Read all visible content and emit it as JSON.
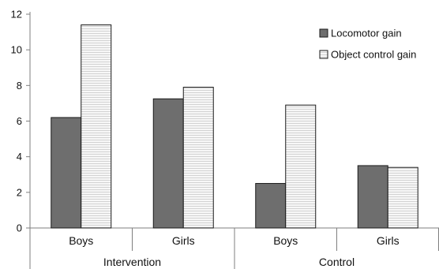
{
  "chart_data": {
    "type": "bar",
    "title": "",
    "xlabel": "",
    "ylabel": "",
    "ylim": [
      0,
      12
    ],
    "yticks": [
      "0",
      "2",
      "4",
      "6",
      "8",
      "10",
      "12"
    ],
    "groups": [
      {
        "label": "Intervention",
        "categories": [
          "Boys",
          "Girls"
        ]
      },
      {
        "label": "Control",
        "categories": [
          "Boys",
          "Girls"
        ]
      }
    ],
    "categories": [
      "Boys",
      "Girls",
      "Boys",
      "Girls"
    ],
    "series": [
      {
        "name": "Locomotor gain",
        "values": [
          6.2,
          7.25,
          2.5,
          3.5
        ],
        "color": "#6e6e6e",
        "pattern": "solid"
      },
      {
        "name": "Object control gain",
        "values": [
          11.4,
          7.9,
          6.9,
          3.4
        ],
        "color": "#f4f4f4",
        "pattern": "horizontal-lines"
      }
    ],
    "grid": false,
    "legend_position": "top-right"
  }
}
